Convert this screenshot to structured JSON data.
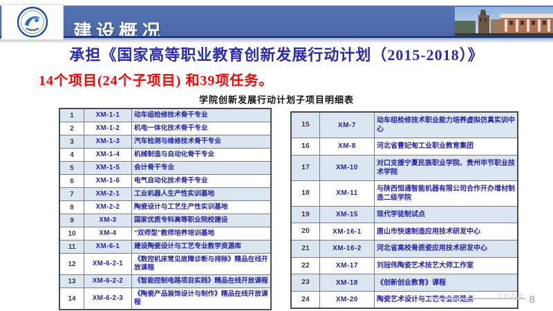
{
  "header": {
    "title": "建设概况"
  },
  "intro": {
    "line1": "承担《国家高等职业教育创新发展行动计划（2015-2018）》",
    "line2": "14个项目(24个子项目) 和39项任务。",
    "table_caption": "学院创新发展行动计划子项目明细表"
  },
  "colors": {
    "header_blue": "#4d6cad",
    "header_dark_line": "#1f3a7a",
    "title_blue": "#2929b8",
    "highlight_red": "#fe0000",
    "table_text_blue": "#2323aa",
    "row_alt_blue": "#dce6f1",
    "border_gray": "#7a7a7a"
  },
  "left_table": {
    "rows": [
      {
        "num": "1",
        "code": "XM-1-1",
        "name": "动车组检修技术骨干专业"
      },
      {
        "num": "2",
        "code": "XM-1-2",
        "name": "机电一体化技术骨干专业"
      },
      {
        "num": "3",
        "code": "XM-1-3",
        "name": "汽车检测与维修技术骨干专业"
      },
      {
        "num": "4",
        "code": "XM-1-4",
        "name": "机械制造与自动化骨干专业"
      },
      {
        "num": "5",
        "code": "XM-1-5",
        "name": "会计骨干专业"
      },
      {
        "num": "6",
        "code": "XM-1-6",
        "name": "电气自动化技术骨干专业"
      },
      {
        "num": "7",
        "code": "XM-2-1",
        "name": "工业机器人生产性实训基地"
      },
      {
        "num": "8",
        "code": "XM-2-2",
        "name": "陶瓷设计与工艺生产性实训基地"
      },
      {
        "num": "9",
        "code": "XM-3",
        "name": "国家优质专科高等职业院校建设"
      },
      {
        "num": "10",
        "code": "XM-4",
        "name": "“双师型”教师培养培训基地"
      },
      {
        "num": "11",
        "code": "XM-6-1",
        "name": "建设陶瓷设计与工艺专业教学资源库"
      },
      {
        "num": "12",
        "code": "XM-6-2-1",
        "name": "《数控机床常见故障诊断与排除》精品在线开放课程"
      },
      {
        "num": "13",
        "code": "XM-6-2-2",
        "name": "《智能控制电路项目实践》精品在线开放课程"
      },
      {
        "num": "14",
        "code": "XM-6-2-3",
        "name": "《陶瓷产品装饰设计与制作》精品在线开放课程"
      }
    ]
  },
  "right_table": {
    "rows": [
      {
        "num": "15",
        "code": "XM-7",
        "name": "动车组检修技术职业能力培养虚拟仿真实训中心"
      },
      {
        "num": "16",
        "code": "XM-8",
        "name": "河北省曹妃甸工业职业教育集团"
      },
      {
        "num": "17",
        "code": "XM-10",
        "name": "对口支援宁夏民族职业学院、贵州毕节职业技术学院"
      },
      {
        "num": "18",
        "code": "XM-11",
        "name": "与陕西恒通智能机器有限公司合作开办增材制造二级学院"
      },
      {
        "num": "19",
        "code": "XM-15",
        "name": "现代学徒制试点"
      },
      {
        "num": "20",
        "code": "XM-16-1",
        "name": "唐山市快速制造应用技术研发中心"
      },
      {
        "num": "21",
        "code": "XM-16-2",
        "name": "河北省高校骨质瓷应用技术研发中心"
      },
      {
        "num": "22",
        "code": "XM-17",
        "name": "刘冠伟陶瓷艺术技艺大师工作室"
      },
      {
        "num": "23",
        "code": "XM-18",
        "name": "《创新创业教育》课程"
      },
      {
        "num": "24",
        "code": "XM-20",
        "name": "陶瓷艺术设计与工艺专业示范点"
      }
    ]
  },
  "footer": {
    "watermark": "LYZill",
    "page_number": "8"
  }
}
